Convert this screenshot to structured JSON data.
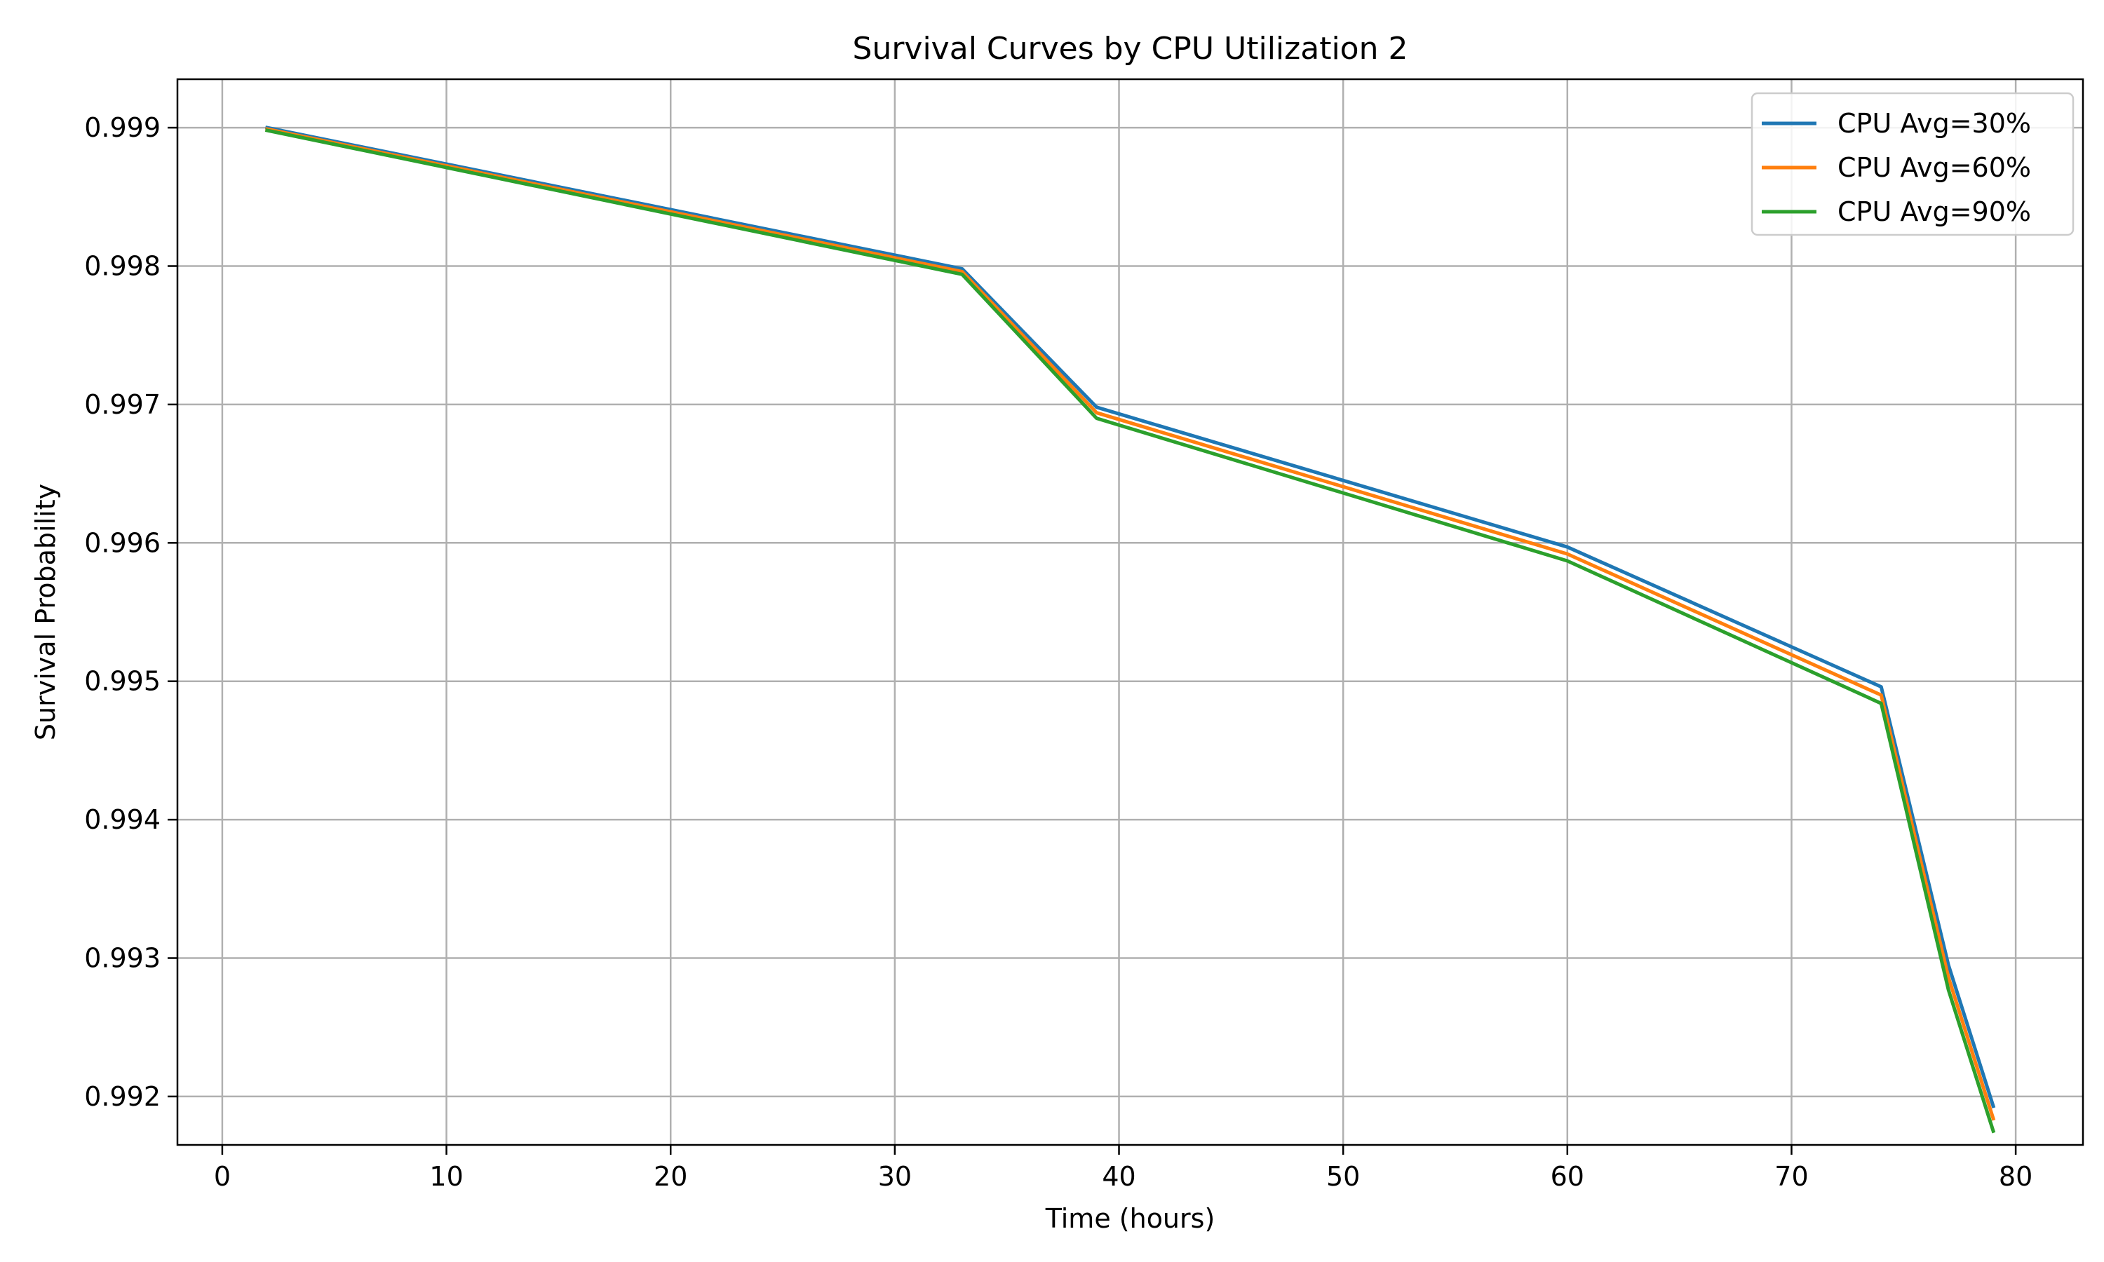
{
  "chart_data": {
    "type": "line",
    "title": "Survival Curves by CPU Utilization 2",
    "xlabel": "Time (hours)",
    "ylabel": "Survival Probability",
    "xlim": [
      -2,
      83
    ],
    "ylim": [
      0.99165,
      0.99935
    ],
    "xticks": [
      0,
      10,
      20,
      30,
      40,
      50,
      60,
      70,
      80
    ],
    "yticks": [
      0.992,
      0.993,
      0.994,
      0.995,
      0.996,
      0.997,
      0.998,
      0.999
    ],
    "ytick_labels": [
      "0.992",
      "0.993",
      "0.994",
      "0.995",
      "0.996",
      "0.997",
      "0.998",
      "0.999"
    ],
    "grid": true,
    "legend_position": "top-right",
    "x": [
      2,
      33,
      39,
      60,
      74,
      77,
      79
    ],
    "series": [
      {
        "name": "CPU Avg=30%",
        "color": "#1f77b4",
        "values": [
          0.999,
          0.99798,
          0.99698,
          0.99597,
          0.99496,
          0.99295,
          0.99193
        ]
      },
      {
        "name": "CPU Avg=60%",
        "color": "#ff7f0e",
        "values": [
          0.99899,
          0.99796,
          0.99694,
          0.99592,
          0.9949,
          0.99286,
          0.99184
        ]
      },
      {
        "name": "CPU Avg=90%",
        "color": "#2ca02c",
        "values": [
          0.99898,
          0.99794,
          0.9969,
          0.99587,
          0.99484,
          0.99277,
          0.99175
        ]
      }
    ]
  }
}
